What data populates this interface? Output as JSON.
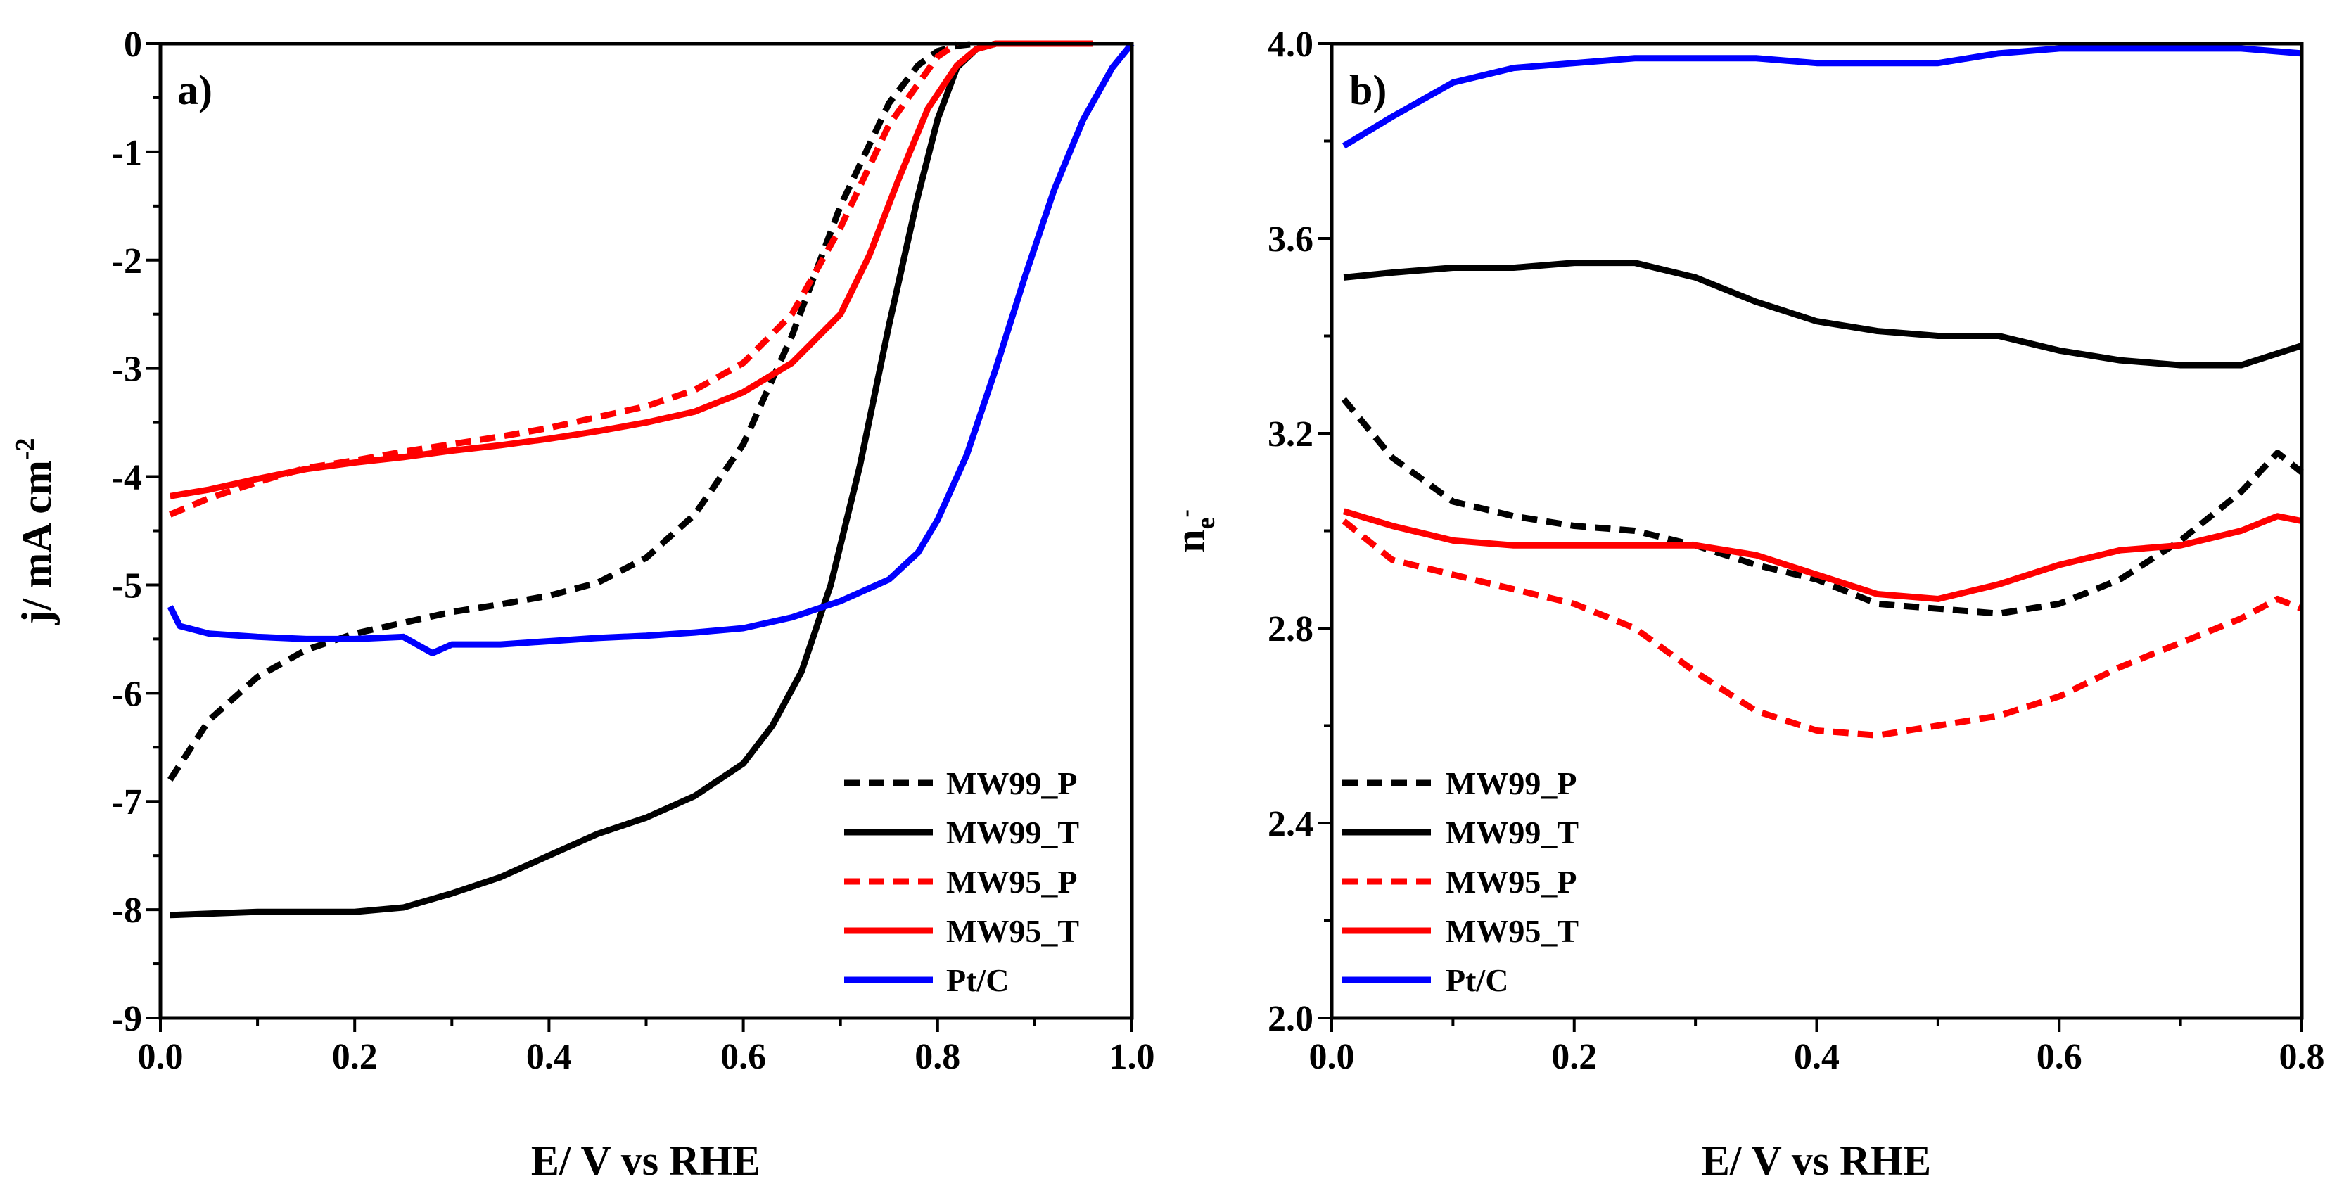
{
  "chart_data": [
    {
      "type": "line",
      "panel_label": "a)",
      "xlabel": "E/ V vs RHE",
      "ylabel_main": "j/ mA cm",
      "ylabel_sup": "-2",
      "xlim": [
        0.0,
        1.0
      ],
      "ylim": [
        -9,
        0
      ],
      "x_ticks": [
        0.0,
        0.2,
        0.4,
        0.6,
        0.8,
        1.0
      ],
      "x_tick_labels": [
        "0.0",
        "0.2",
        "0.4",
        "0.6",
        "0.8",
        "1.0"
      ],
      "y_ticks": [
        0,
        -1,
        -2,
        -3,
        -4,
        -5,
        -6,
        -7,
        -8,
        -9
      ],
      "y_tick_labels": [
        "0",
        "-1",
        "-2",
        "-3",
        "-4",
        "-5",
        "-6",
        "-7",
        "-8",
        "-9"
      ],
      "legend_position": "bottom-right",
      "series": [
        {
          "name": "MW99_P",
          "color": "#000000",
          "dash": "dashed",
          "x": [
            0.01,
            0.05,
            0.1,
            0.15,
            0.2,
            0.25,
            0.3,
            0.35,
            0.4,
            0.45,
            0.5,
            0.55,
            0.6,
            0.65,
            0.7,
            0.75,
            0.78,
            0.8,
            0.82,
            0.84
          ],
          "y": [
            -6.8,
            -6.25,
            -5.85,
            -5.6,
            -5.45,
            -5.35,
            -5.25,
            -5.18,
            -5.1,
            -4.98,
            -4.75,
            -4.35,
            -3.7,
            -2.7,
            -1.5,
            -0.55,
            -0.2,
            -0.07,
            -0.02,
            0.0
          ]
        },
        {
          "name": "MW99_T",
          "color": "#000000",
          "dash": "solid",
          "x": [
            0.01,
            0.1,
            0.2,
            0.25,
            0.3,
            0.35,
            0.4,
            0.45,
            0.5,
            0.55,
            0.6,
            0.63,
            0.66,
            0.69,
            0.72,
            0.75,
            0.78,
            0.8,
            0.82,
            0.84,
            0.86,
            0.9,
            0.96
          ],
          "y": [
            -8.05,
            -8.02,
            -8.02,
            -7.98,
            -7.85,
            -7.7,
            -7.5,
            -7.3,
            -7.15,
            -6.95,
            -6.65,
            -6.3,
            -5.8,
            -5.0,
            -3.9,
            -2.6,
            -1.4,
            -0.7,
            -0.22,
            -0.05,
            0.0,
            0.0,
            0.0
          ]
        },
        {
          "name": "MW95_P",
          "color": "#ff0000",
          "dash": "dashed",
          "x": [
            0.01,
            0.05,
            0.1,
            0.15,
            0.2,
            0.25,
            0.3,
            0.35,
            0.4,
            0.45,
            0.5,
            0.55,
            0.6,
            0.65,
            0.7,
            0.75,
            0.8,
            0.82
          ],
          "y": [
            -4.35,
            -4.2,
            -4.05,
            -3.92,
            -3.85,
            -3.77,
            -3.7,
            -3.63,
            -3.55,
            -3.45,
            -3.35,
            -3.2,
            -2.95,
            -2.5,
            -1.7,
            -0.75,
            -0.12,
            0.0
          ]
        },
        {
          "name": "MW95_T",
          "color": "#ff0000",
          "dash": "solid",
          "x": [
            0.01,
            0.05,
            0.1,
            0.15,
            0.2,
            0.25,
            0.3,
            0.35,
            0.4,
            0.45,
            0.5,
            0.55,
            0.6,
            0.65,
            0.7,
            0.73,
            0.76,
            0.79,
            0.82,
            0.84,
            0.86,
            0.9,
            0.96
          ],
          "y": [
            -4.18,
            -4.12,
            -4.02,
            -3.93,
            -3.87,
            -3.82,
            -3.76,
            -3.71,
            -3.65,
            -3.58,
            -3.5,
            -3.4,
            -3.22,
            -2.95,
            -2.5,
            -1.95,
            -1.25,
            -0.6,
            -0.2,
            -0.05,
            0.0,
            0.0,
            0.0
          ]
        },
        {
          "name": "Pt/C",
          "color": "#0000ff",
          "dash": "solid",
          "x": [
            0.01,
            0.02,
            0.05,
            0.1,
            0.15,
            0.2,
            0.25,
            0.28,
            0.3,
            0.35,
            0.4,
            0.45,
            0.5,
            0.55,
            0.6,
            0.65,
            0.7,
            0.75,
            0.78,
            0.8,
            0.83,
            0.86,
            0.89,
            0.92,
            0.95,
            0.98,
            1.0
          ],
          "y": [
            -5.2,
            -5.38,
            -5.45,
            -5.48,
            -5.5,
            -5.5,
            -5.48,
            -5.63,
            -5.55,
            -5.55,
            -5.52,
            -5.49,
            -5.47,
            -5.44,
            -5.4,
            -5.3,
            -5.15,
            -4.95,
            -4.7,
            -4.4,
            -3.8,
            -3.0,
            -2.15,
            -1.35,
            -0.7,
            -0.22,
            0.0
          ]
        }
      ]
    },
    {
      "type": "line",
      "panel_label": "b)",
      "xlabel": "E/ V vs RHE",
      "ylabel_main": "n",
      "ylabel_sub": "e",
      "ylabel_subsup": "-",
      "xlim": [
        0.0,
        0.8
      ],
      "ylim": [
        2.0,
        4.0
      ],
      "x_ticks": [
        0.0,
        0.2,
        0.4,
        0.6,
        0.8
      ],
      "x_tick_labels": [
        "0.0",
        "0.2",
        "0.4",
        "0.6",
        "0.8"
      ],
      "y_ticks": [
        2.0,
        2.4,
        2.8,
        3.2,
        3.6,
        4.0
      ],
      "y_tick_labels": [
        "2.0",
        "2.4",
        "2.8",
        "3.2",
        "3.6",
        "4.0"
      ],
      "legend_position": "bottom-left",
      "series": [
        {
          "name": "MW99_P",
          "color": "#000000",
          "dash": "dashed",
          "x": [
            0.01,
            0.05,
            0.1,
            0.15,
            0.2,
            0.25,
            0.3,
            0.35,
            0.4,
            0.45,
            0.5,
            0.55,
            0.6,
            0.65,
            0.7,
            0.75,
            0.78,
            0.8
          ],
          "y": [
            3.27,
            3.15,
            3.06,
            3.03,
            3.01,
            3.0,
            2.97,
            2.93,
            2.9,
            2.85,
            2.84,
            2.83,
            2.85,
            2.9,
            2.98,
            3.08,
            3.16,
            3.12
          ]
        },
        {
          "name": "MW99_T",
          "color": "#000000",
          "dash": "solid",
          "x": [
            0.01,
            0.05,
            0.1,
            0.15,
            0.2,
            0.25,
            0.3,
            0.35,
            0.4,
            0.45,
            0.5,
            0.55,
            0.6,
            0.65,
            0.7,
            0.75,
            0.8
          ],
          "y": [
            3.52,
            3.53,
            3.54,
            3.54,
            3.55,
            3.55,
            3.52,
            3.47,
            3.43,
            3.41,
            3.4,
            3.4,
            3.37,
            3.35,
            3.34,
            3.34,
            3.38
          ]
        },
        {
          "name": "MW95_P",
          "color": "#ff0000",
          "dash": "dashed",
          "x": [
            0.01,
            0.05,
            0.1,
            0.15,
            0.2,
            0.25,
            0.3,
            0.35,
            0.4,
            0.45,
            0.5,
            0.55,
            0.6,
            0.65,
            0.7,
            0.75,
            0.78,
            0.8
          ],
          "y": [
            3.02,
            2.94,
            2.91,
            2.88,
            2.85,
            2.8,
            2.71,
            2.63,
            2.59,
            2.58,
            2.6,
            2.62,
            2.66,
            2.72,
            2.77,
            2.82,
            2.86,
            2.84
          ]
        },
        {
          "name": "MW95_T",
          "color": "#ff0000",
          "dash": "solid",
          "x": [
            0.01,
            0.05,
            0.1,
            0.15,
            0.2,
            0.25,
            0.3,
            0.35,
            0.4,
            0.45,
            0.5,
            0.55,
            0.6,
            0.65,
            0.7,
            0.75,
            0.78,
            0.8
          ],
          "y": [
            3.04,
            3.01,
            2.98,
            2.97,
            2.97,
            2.97,
            2.97,
            2.95,
            2.91,
            2.87,
            2.86,
            2.89,
            2.93,
            2.96,
            2.97,
            3.0,
            3.03,
            3.02
          ]
        },
        {
          "name": "Pt/C",
          "color": "#0000ff",
          "dash": "solid",
          "x": [
            0.01,
            0.05,
            0.1,
            0.15,
            0.2,
            0.25,
            0.3,
            0.35,
            0.4,
            0.45,
            0.5,
            0.55,
            0.6,
            0.65,
            0.7,
            0.75,
            0.8
          ],
          "y": [
            3.79,
            3.85,
            3.92,
            3.95,
            3.96,
            3.97,
            3.97,
            3.97,
            3.96,
            3.96,
            3.96,
            3.98,
            3.99,
            3.99,
            3.99,
            3.99,
            3.98
          ]
        }
      ]
    }
  ]
}
